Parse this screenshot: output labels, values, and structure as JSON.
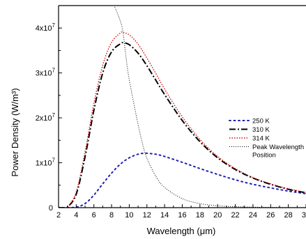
{
  "chart_data": {
    "type": "line",
    "xlabel": "Wavelength (μm)",
    "ylabel": "Power Density (W/m³)",
    "xlim": [
      2,
      30
    ],
    "ylim": [
      0,
      45000000
    ],
    "xticks": [
      2,
      4,
      6,
      8,
      10,
      12,
      14,
      16,
      18,
      20,
      22,
      24,
      26,
      28,
      30
    ],
    "yticks": [
      {
        "value": 0,
        "label": "0"
      },
      {
        "value": 10000000,
        "label": "1x10",
        "exp": "7"
      },
      {
        "value": 20000000,
        "label": "2x10",
        "exp": "7"
      },
      {
        "value": 30000000,
        "label": "3x10",
        "exp": "7"
      },
      {
        "value": 40000000,
        "label": "4x10",
        "exp": "7"
      }
    ],
    "legend_position": "right",
    "grid": false,
    "series": [
      {
        "name": "250 K",
        "color": "#1f1fb4",
        "dash": "dotted-blue",
        "x": [
          2,
          3,
          4,
          5,
          6,
          7,
          8,
          9,
          10,
          11,
          11.6,
          12,
          13,
          14,
          16,
          18,
          20,
          22,
          24,
          26,
          28,
          30
        ],
        "y": [
          0,
          4000,
          120000,
          900000,
          2800000,
          5300000,
          7700000,
          9700000,
          11100000,
          11900000,
          12100000,
          12100000,
          11900000,
          11400000,
          10100000,
          8700000,
          7400000,
          6200000,
          5200000,
          4400000,
          3700000,
          3100000
        ]
      },
      {
        "name": "310 K",
        "color": "#000000",
        "dash": "dash-dot",
        "x": [
          2,
          2.5,
          3,
          4,
          5,
          6,
          7,
          8,
          9,
          9.35,
          10,
          11,
          12,
          13,
          14,
          16,
          18,
          20,
          22,
          24,
          26,
          28,
          30
        ],
        "y": [
          0,
          1000,
          100000,
          3000000,
          11300000,
          21700000,
          30000000,
          34700000,
          36500000,
          36700000,
          36300000,
          34400000,
          31600000,
          28400000,
          25200000,
          19400000,
          14700000,
          11100000,
          8500000,
          6600000,
          5200000,
          4100000,
          3300000
        ]
      },
      {
        "name": "314 K",
        "color": "#d01010",
        "dash": "dotted-red",
        "x": [
          2,
          2.5,
          3,
          4,
          5,
          6,
          7,
          8,
          9,
          9.25,
          10,
          11,
          12,
          13,
          14,
          16,
          18,
          20,
          22,
          24,
          26,
          28,
          30
        ],
        "y": [
          0,
          1200,
          120000,
          3500000,
          12400000,
          23200000,
          31700000,
          36800000,
          38900000,
          39000000,
          38500000,
          36400000,
          33300000,
          29900000,
          26400000,
          20200000,
          15200000,
          11400000,
          8700000,
          6700000,
          5300000,
          4200000,
          3400000
        ]
      },
      {
        "name": "Peak Wavelength Position",
        "legend_lines": [
          "Peak Wavelength",
          "Position"
        ],
        "color": "#000000",
        "dash": "fine-dotted",
        "x": [
          8.1,
          8.5,
          9,
          9.3,
          9.6,
          10,
          11,
          11.6,
          12,
          13,
          14,
          16,
          18,
          20,
          22,
          24,
          26,
          28,
          30
        ],
        "y": [
          46000000,
          44000000,
          41500000,
          39000000,
          34000000,
          28500000,
          18500000,
          13500000,
          11000000,
          7000000,
          4500000,
          2000000,
          900000,
          420000,
          210000,
          110000,
          60000,
          30000,
          15000
        ]
      }
    ]
  }
}
